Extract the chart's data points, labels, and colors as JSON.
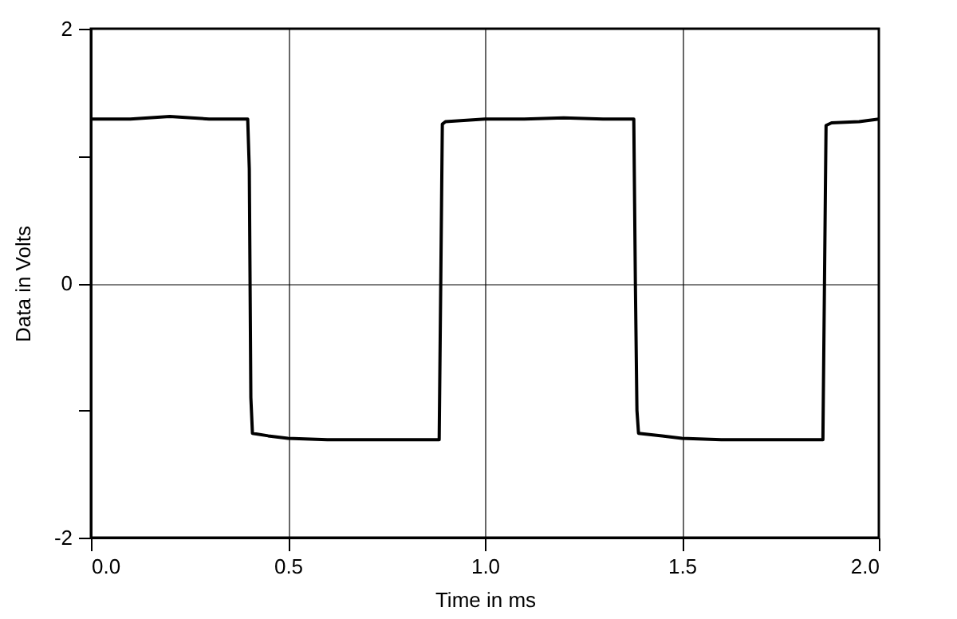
{
  "chart_data": {
    "type": "line",
    "xlabel": "Time in ms",
    "ylabel": "Data in Volts",
    "x": [
      0.0,
      0.1,
      0.2,
      0.3,
      0.398,
      0.402,
      0.406,
      0.41,
      0.45,
      0.5,
      0.6,
      0.7,
      0.8,
      0.884,
      0.888,
      0.892,
      0.9,
      1.0,
      1.1,
      1.2,
      1.3,
      1.378,
      1.382,
      1.386,
      1.39,
      1.45,
      1.5,
      1.6,
      1.7,
      1.858,
      1.862,
      1.866,
      1.88,
      1.95,
      2.0
    ],
    "series": [
      {
        "color": "#000000",
        "values": [
          1.29,
          1.29,
          1.31,
          1.29,
          1.29,
          0.9,
          -0.9,
          -1.18,
          -1.2,
          -1.22,
          -1.23,
          -1.23,
          -1.23,
          -1.23,
          0.0,
          1.25,
          1.27,
          1.29,
          1.29,
          1.3,
          1.29,
          1.29,
          0.0,
          -1.0,
          -1.18,
          -1.2,
          -1.22,
          -1.23,
          -1.23,
          -1.23,
          0.0,
          1.24,
          1.26,
          1.27,
          1.29
        ]
      }
    ],
    "xlim": [
      0,
      2
    ],
    "xticks": [
      {
        "value": 0,
        "label": "0.0"
      },
      {
        "value": 0.5,
        "label": "0.5"
      },
      {
        "value": 1,
        "label": "1.0"
      },
      {
        "value": 1.5,
        "label": "1.5"
      },
      {
        "value": 2,
        "label": "2.0"
      }
    ],
    "ylim": [
      -2,
      2
    ],
    "yticks": [
      -2,
      {
        "value": -1,
        "label": null
      },
      0,
      {
        "value": 1,
        "label": null
      },
      2
    ],
    "grid": true,
    "marker": "none",
    "line_style": "solid"
  }
}
